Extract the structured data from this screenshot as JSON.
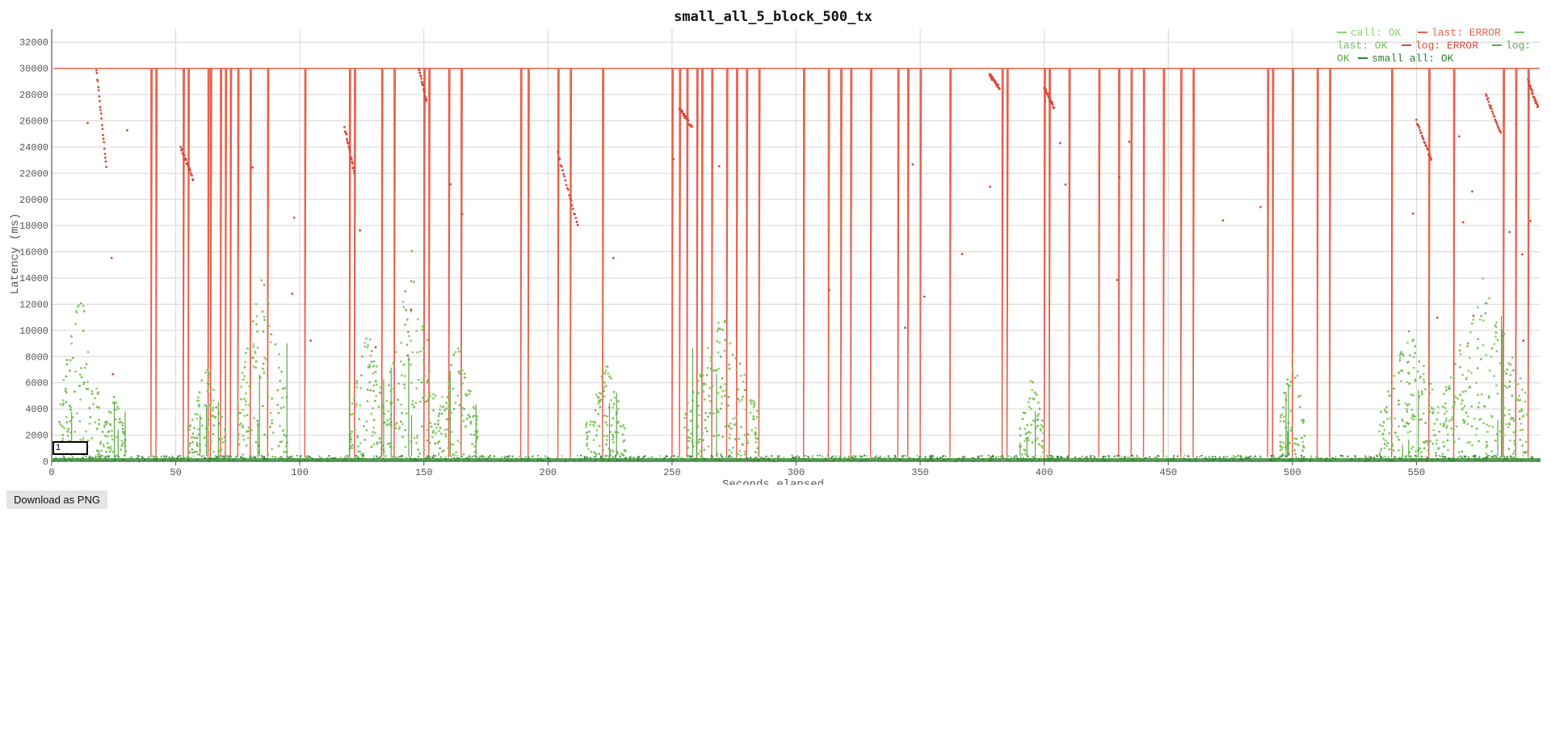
{
  "chart_data": {
    "type": "scatter",
    "title": "small_all_5_block_500_tx",
    "xlabel": "Seconds elapsed",
    "ylabel": "Latency (ms)",
    "xlim": [
      0,
      600
    ],
    "ylim": [
      0,
      33000
    ],
    "x_ticks": [
      0,
      50,
      100,
      150,
      200,
      250,
      300,
      350,
      400,
      450,
      500,
      550
    ],
    "y_ticks": [
      0,
      2000,
      4000,
      6000,
      8000,
      10000,
      12000,
      14000,
      16000,
      18000,
      20000,
      22000,
      24000,
      26000,
      28000,
      30000,
      32000
    ],
    "grid": true,
    "legend_position": "top-right",
    "series": [
      {
        "name": "call: OK",
        "color": "#8ecf6a",
        "description_values": "mostly 0-500 ms baseline with bursts up to ~16000 ms"
      },
      {
        "name": "last: ERROR",
        "color": "#e8604a",
        "description_values": "mostly at 30000 ms timeout plateau with sharp drops to ~0"
      },
      {
        "name": "last: OK",
        "color": "#74bf57",
        "description_values": "bursts between 1000 and 11000 ms"
      },
      {
        "name": "log: ERROR",
        "color": "#d9493a",
        "description_values": "scattered 20000-30000 ms decaying runs"
      },
      {
        "name": "log: OK",
        "color": "#5ca846",
        "description_values": "near baseline with spikes to ~14000 ms"
      },
      {
        "name": "small all: OK",
        "color": "#2e7d32",
        "description_values": "dense baseline 0-400 ms"
      }
    ],
    "error_plateau": 30000,
    "error_drops_at": [
      40,
      42,
      53,
      55,
      63,
      64,
      68,
      70,
      72,
      75,
      80,
      87,
      102,
      120,
      122,
      133,
      138,
      150,
      152,
      160,
      165,
      189,
      192,
      204,
      209,
      222,
      250,
      253,
      256,
      260,
      262,
      266,
      272,
      276,
      280,
      285,
      303,
      313,
      318,
      322,
      330,
      341,
      345,
      350,
      362,
      383,
      385,
      400,
      402,
      410,
      422,
      430,
      435,
      440,
      448,
      455,
      460,
      490,
      492,
      500,
      510,
      515,
      540,
      555,
      565,
      585,
      590,
      595
    ],
    "green_clusters": [
      {
        "x0": 3,
        "x1": 20,
        "peak": 13000
      },
      {
        "x0": 20,
        "x1": 30,
        "peak": 5000
      },
      {
        "x0": 55,
        "x1": 70,
        "peak": 7000
      },
      {
        "x0": 75,
        "x1": 95,
        "peak": 15000
      },
      {
        "x0": 120,
        "x1": 135,
        "peak": 10000
      },
      {
        "x0": 135,
        "x1": 155,
        "peak": 16000
      },
      {
        "x0": 155,
        "x1": 172,
        "peak": 9000
      },
      {
        "x0": 215,
        "x1": 232,
        "peak": 7000
      },
      {
        "x0": 255,
        "x1": 285,
        "peak": 11000
      },
      {
        "x0": 390,
        "x1": 400,
        "peak": 6500
      },
      {
        "x0": 495,
        "x1": 505,
        "peak": 9000
      },
      {
        "x0": 535,
        "x1": 560,
        "peak": 10000
      },
      {
        "x0": 560,
        "x1": 595,
        "peak": 14000
      }
    ]
  },
  "controls": {
    "download_label": "Download as PNG",
    "zoom_value": "1"
  }
}
